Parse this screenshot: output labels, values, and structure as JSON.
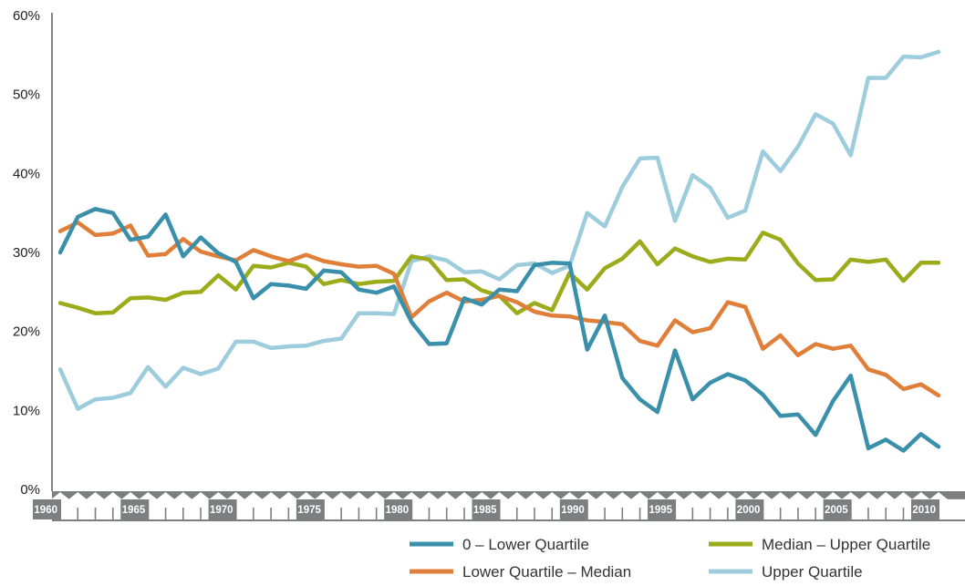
{
  "chart_data": {
    "type": "line",
    "title": "",
    "xlabel": "",
    "ylabel": "",
    "xlim": [
      1960,
      2010
    ],
    "ylim": [
      0,
      60
    ],
    "y_ticks": [
      "0%",
      "10%",
      "20%",
      "30%",
      "40%",
      "50%",
      "60%"
    ],
    "x_ticks": [
      "1960",
      "1965",
      "1970",
      "1975",
      "1980",
      "1985",
      "1990",
      "1995",
      "2000",
      "2005",
      "2010"
    ],
    "grid": false,
    "legend_position": "bottom-right",
    "x": [
      1960,
      1961,
      1962,
      1963,
      1964,
      1965,
      1966,
      1967,
      1968,
      1969,
      1970,
      1971,
      1972,
      1973,
      1974,
      1975,
      1976,
      1977,
      1978,
      1979,
      1980,
      1981,
      1982,
      1983,
      1984,
      1985,
      1986,
      1987,
      1988,
      1989,
      1990,
      1991,
      1992,
      1993,
      1994,
      1995,
      1996,
      1997,
      1998,
      1999,
      2000,
      2001,
      2002,
      2003,
      2004,
      2005,
      2006,
      2007,
      2008,
      2009,
      2010
    ],
    "series": [
      {
        "name": "0 – Lower Quartile",
        "color": "#3a8fab",
        "values": [
          30.0,
          34.5,
          35.5,
          35.0,
          31.6,
          32.0,
          34.8,
          29.5,
          31.9,
          29.9,
          28.8,
          24.2,
          26.0,
          25.8,
          25.4,
          27.7,
          27.5,
          25.3,
          24.9,
          25.7,
          21.2,
          18.4,
          18.5,
          24.2,
          23.4,
          25.3,
          25.1,
          28.4,
          28.7,
          28.6,
          17.7,
          22.0,
          14.1,
          11.4,
          9.8,
          17.6,
          11.4,
          13.5,
          14.6,
          13.8,
          12.0,
          9.3,
          9.5,
          6.9,
          11.2,
          14.4,
          5.2,
          6.3,
          4.9,
          7.0,
          5.4
        ]
      },
      {
        "name": "Lower Quartile – Median",
        "color": "#e07f3a",
        "values": [
          32.7,
          33.8,
          32.2,
          32.4,
          33.4,
          29.6,
          29.8,
          31.7,
          30.1,
          29.5,
          29.0,
          30.3,
          29.5,
          28.9,
          29.7,
          28.9,
          28.5,
          28.2,
          28.3,
          27.3,
          21.8,
          23.8,
          24.9,
          23.8,
          24.0,
          24.5,
          23.7,
          22.5,
          22.0,
          21.9,
          21.4,
          21.2,
          20.9,
          18.8,
          18.2,
          21.4,
          19.9,
          20.4,
          23.7,
          23.1,
          17.8,
          19.5,
          17.0,
          18.4,
          17.8,
          18.2,
          15.2,
          14.5,
          12.7,
          13.3,
          11.9
        ]
      },
      {
        "name": "Median – Upper Quartile",
        "color": "#9bab1a",
        "values": [
          23.6,
          23.0,
          22.3,
          22.4,
          24.2,
          24.3,
          24.0,
          24.9,
          25.0,
          27.1,
          25.3,
          28.3,
          28.1,
          28.7,
          28.2,
          26.0,
          26.5,
          26.0,
          26.3,
          26.4,
          29.5,
          29.1,
          26.5,
          26.6,
          25.2,
          24.5,
          22.3,
          23.6,
          22.7,
          27.4,
          25.3,
          28.0,
          29.2,
          31.4,
          28.5,
          30.5,
          29.5,
          28.8,
          29.2,
          29.1,
          32.5,
          31.6,
          28.6,
          26.5,
          26.6,
          29.1,
          28.8,
          29.1,
          26.4,
          28.7,
          28.7
        ]
      },
      {
        "name": "Upper Quartile",
        "color": "#9dccdc",
        "values": [
          15.2,
          10.2,
          11.4,
          11.6,
          12.2,
          15.5,
          13.0,
          15.4,
          14.6,
          15.3,
          18.7,
          18.7,
          17.9,
          18.1,
          18.2,
          18.8,
          19.1,
          22.3,
          22.3,
          22.2,
          28.9,
          29.5,
          29.0,
          27.5,
          27.6,
          26.6,
          28.4,
          28.6,
          27.4,
          28.3,
          35.0,
          33.3,
          38.3,
          41.9,
          42.0,
          34.0,
          39.8,
          38.2,
          34.4,
          35.3,
          42.8,
          40.3,
          43.4,
          47.5,
          46.3,
          42.3,
          52.1,
          52.1,
          54.8,
          54.7,
          55.4
        ]
      }
    ]
  }
}
